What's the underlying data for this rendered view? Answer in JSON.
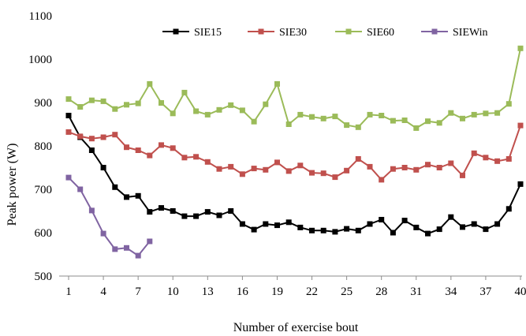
{
  "chart_data": {
    "type": "line",
    "title": "",
    "xlabel": "Number of exercise bout",
    "ylabel": "Peak power (W)",
    "xlim": [
      1,
      40
    ],
    "ylim": [
      500,
      1100
    ],
    "xticks": [
      1,
      4,
      7,
      10,
      13,
      16,
      19,
      22,
      25,
      28,
      31,
      34,
      37,
      40
    ],
    "yticks": [
      500,
      600,
      700,
      800,
      900,
      1000,
      1100
    ],
    "legend_position": "top-right",
    "grid": false,
    "series": [
      {
        "name": "SIE15",
        "color": "#000000",
        "marker": "square",
        "x": [
          1,
          2,
          3,
          4,
          5,
          6,
          7,
          8,
          9,
          10,
          11,
          12,
          13,
          14,
          15,
          16,
          17,
          18,
          19,
          20,
          21,
          22,
          23,
          24,
          25,
          26,
          27,
          28,
          29,
          30,
          31,
          32,
          33,
          34,
          35,
          36,
          37,
          38,
          39,
          40
        ],
        "values": [
          870,
          820,
          790,
          750,
          705,
          682,
          685,
          648,
          657,
          650,
          638,
          638,
          648,
          640,
          650,
          620,
          607,
          620,
          617,
          624,
          612,
          605,
          605,
          602,
          609,
          605,
          620,
          630,
          600,
          628,
          612,
          598,
          608,
          636,
          613,
          620,
          608,
          620,
          655,
          712
        ]
      },
      {
        "name": "SIE30",
        "color": "#c0504d",
        "marker": "square",
        "x": [
          1,
          2,
          3,
          4,
          5,
          6,
          7,
          8,
          9,
          10,
          11,
          12,
          13,
          14,
          15,
          16,
          17,
          18,
          19,
          20,
          21,
          22,
          23,
          24,
          25,
          26,
          27,
          28,
          29,
          30,
          31,
          32,
          33,
          34,
          35,
          36,
          37,
          38,
          39,
          40
        ],
        "values": [
          832,
          822,
          817,
          820,
          826,
          797,
          790,
          778,
          802,
          795,
          773,
          775,
          763,
          747,
          752,
          735,
          748,
          745,
          762,
          742,
          755,
          738,
          737,
          728,
          743,
          770,
          752,
          722,
          747,
          750,
          745,
          757,
          750,
          760,
          732,
          783,
          773,
          765,
          770,
          847
        ]
      },
      {
        "name": "SIE60",
        "color": "#9bbb59",
        "marker": "square",
        "x": [
          1,
          2,
          3,
          4,
          5,
          6,
          7,
          8,
          9,
          10,
          11,
          12,
          13,
          14,
          15,
          16,
          17,
          18,
          19,
          20,
          21,
          22,
          23,
          24,
          25,
          26,
          27,
          28,
          29,
          30,
          31,
          32,
          33,
          34,
          35,
          36,
          37,
          38,
          39,
          40
        ],
        "values": [
          908,
          890,
          905,
          903,
          885,
          895,
          898,
          943,
          899,
          875,
          923,
          880,
          872,
          883,
          894,
          882,
          856,
          896,
          943,
          850,
          872,
          867,
          863,
          868,
          848,
          843,
          872,
          870,
          858,
          859,
          841,
          857,
          853,
          876,
          863,
          872,
          875,
          876,
          897,
          1025
        ]
      },
      {
        "name": "SIEWin",
        "color": "#8064a2",
        "marker": "square",
        "x": [
          1,
          2,
          3,
          4,
          5,
          6,
          7,
          8
        ],
        "values": [
          727,
          700,
          651,
          598,
          562,
          565,
          547,
          580
        ]
      }
    ]
  }
}
